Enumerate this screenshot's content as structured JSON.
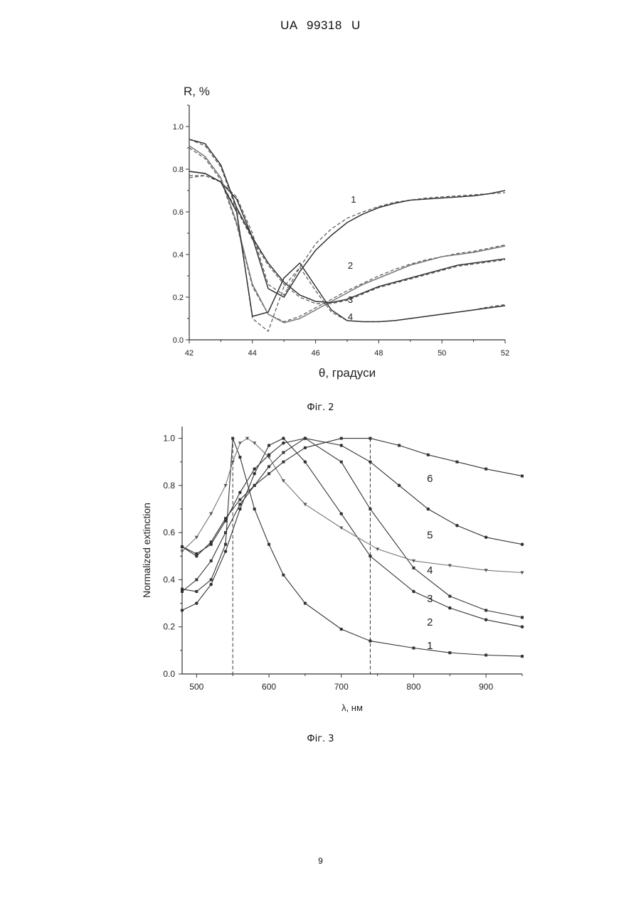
{
  "header": {
    "doc_id": "UA 99318 U"
  },
  "page_number": "9",
  "chart_data": [
    {
      "type": "line",
      "caption": "Фіг. 2",
      "xlabel": "θ, градуси",
      "ylabel": "R, %",
      "xlim": [
        42,
        52
      ],
      "ylim": [
        0,
        1.1
      ],
      "xticks": [
        42,
        44,
        46,
        48,
        50,
        52
      ],
      "yticks": [
        0.0,
        0.2,
        0.4,
        0.6,
        0.8,
        1.0
      ],
      "grid": false,
      "series": [
        {
          "name": "1",
          "label_at": [
            47.2,
            0.66
          ],
          "x": [
            42,
            42.5,
            43,
            43.5,
            44,
            44.5,
            45,
            45.5,
            46,
            46.5,
            47,
            47.5,
            48,
            48.5,
            49,
            49.5,
            50,
            50.5,
            51,
            51.5,
            52
          ],
          "measured": [
            0.79,
            0.78,
            0.74,
            0.66,
            0.48,
            0.24,
            0.2,
            0.32,
            0.42,
            0.49,
            0.55,
            0.59,
            0.62,
            0.64,
            0.655,
            0.66,
            0.665,
            0.67,
            0.675,
            0.685,
            0.7
          ],
          "fitted": [
            0.76,
            0.77,
            0.74,
            0.67,
            0.5,
            0.26,
            0.21,
            0.34,
            0.45,
            0.52,
            0.57,
            0.6,
            0.625,
            0.645,
            0.655,
            0.665,
            0.67,
            0.675,
            0.68,
            0.685,
            0.69
          ]
        },
        {
          "name": "2",
          "label_at": [
            47.1,
            0.35
          ],
          "x": [
            42,
            42.5,
            43,
            43.5,
            44,
            44.5,
            45,
            45.5,
            46,
            46.5,
            47,
            47.5,
            48,
            48.5,
            49,
            49.5,
            50,
            50.5,
            51,
            51.5,
            52
          ],
          "measured": [
            0.91,
            0.86,
            0.76,
            0.55,
            0.26,
            0.12,
            0.08,
            0.1,
            0.14,
            0.18,
            0.22,
            0.26,
            0.29,
            0.32,
            0.35,
            0.37,
            0.39,
            0.4,
            0.41,
            0.425,
            0.44
          ],
          "fitted": [
            0.9,
            0.85,
            0.75,
            0.54,
            0.25,
            0.12,
            0.085,
            0.11,
            0.15,
            0.19,
            0.23,
            0.265,
            0.3,
            0.33,
            0.355,
            0.375,
            0.39,
            0.405,
            0.415,
            0.43,
            0.445
          ]
        },
        {
          "name": "3",
          "label_at": [
            47.1,
            0.19
          ],
          "x": [
            42,
            42.5,
            43,
            43.5,
            44,
            44.5,
            45,
            45.5,
            46,
            46.5,
            47,
            47.5,
            48,
            48.5,
            49,
            49.5,
            50,
            50.5,
            51,
            51.5,
            52
          ],
          "measured": [
            0.94,
            0.92,
            0.82,
            0.62,
            0.48,
            0.36,
            0.27,
            0.21,
            0.18,
            0.175,
            0.19,
            0.22,
            0.25,
            0.27,
            0.29,
            0.31,
            0.33,
            0.35,
            0.36,
            0.37,
            0.38
          ],
          "fitted": [
            0.94,
            0.91,
            0.81,
            0.61,
            0.47,
            0.35,
            0.26,
            0.2,
            0.17,
            0.17,
            0.185,
            0.215,
            0.245,
            0.265,
            0.285,
            0.305,
            0.325,
            0.345,
            0.355,
            0.365,
            0.375
          ]
        },
        {
          "name": "4",
          "label_at": [
            47.1,
            0.11
          ],
          "x": [
            42,
            42.5,
            43,
            43.5,
            44,
            44.5,
            45,
            45.5,
            46,
            46.5,
            47,
            47.5,
            48,
            48.5,
            49,
            49.5,
            50,
            50.5,
            51,
            51.5,
            52
          ],
          "measured": [
            0.79,
            0.78,
            0.74,
            0.6,
            0.11,
            0.13,
            0.29,
            0.36,
            0.25,
            0.14,
            0.09,
            0.085,
            0.085,
            0.09,
            0.1,
            0.11,
            0.12,
            0.13,
            0.14,
            0.15,
            0.16
          ],
          "fitted": [
            0.77,
            0.77,
            0.74,
            0.61,
            0.1,
            0.04,
            0.25,
            0.34,
            0.23,
            0.13,
            0.09,
            0.085,
            0.085,
            0.09,
            0.1,
            0.11,
            0.12,
            0.13,
            0.14,
            0.155,
            0.165
          ]
        }
      ]
    },
    {
      "type": "line",
      "caption": "Фіг. 3",
      "xlabel": "λ, нм",
      "ylabel": "Normalized extinction",
      "xlim": [
        480,
        950
      ],
      "ylim": [
        0,
        1.05
      ],
      "xticks": [
        500,
        600,
        700,
        800,
        900
      ],
      "yticks": [
        0.0,
        0.2,
        0.4,
        0.6,
        0.8,
        1.0
      ],
      "grid": false,
      "reference_lines_x": [
        550,
        740
      ],
      "series": [
        {
          "name": "1",
          "label_at": [
            850,
            0.12
          ],
          "x": [
            480,
            500,
            520,
            540,
            550,
            560,
            580,
            600,
            620,
            650,
            700,
            740,
            800,
            850,
            900,
            950
          ],
          "values": [
            0.36,
            0.35,
            0.4,
            0.55,
            1.0,
            0.92,
            0.7,
            0.55,
            0.42,
            0.3,
            0.19,
            0.14,
            0.11,
            0.09,
            0.08,
            0.075
          ]
        },
        {
          "name": "2",
          "label_at": [
            850,
            0.22
          ],
          "x": [
            480,
            500,
            520,
            540,
            560,
            580,
            600,
            620,
            650,
            700,
            740,
            800,
            850,
            900,
            950
          ],
          "values": [
            0.27,
            0.3,
            0.38,
            0.52,
            0.7,
            0.85,
            0.97,
            1.0,
            0.9,
            0.68,
            0.5,
            0.35,
            0.28,
            0.23,
            0.2
          ]
        },
        {
          "name": "3",
          "label_at": [
            850,
            0.32
          ],
          "x": [
            480,
            500,
            520,
            540,
            560,
            580,
            600,
            620,
            650,
            700,
            740,
            800,
            850,
            900,
            950
          ],
          "values": [
            0.35,
            0.4,
            0.48,
            0.6,
            0.72,
            0.8,
            0.88,
            0.94,
            1.0,
            0.9,
            0.7,
            0.45,
            0.33,
            0.27,
            0.24
          ]
        },
        {
          "name": "4",
          "label_at": [
            850,
            0.44
          ],
          "x": [
            480,
            500,
            520,
            540,
            550,
            560,
            570,
            580,
            600,
            620,
            650,
            700,
            750,
            800,
            850,
            900,
            950
          ],
          "values": [
            0.52,
            0.58,
            0.68,
            0.8,
            0.9,
            0.98,
            1.0,
            0.98,
            0.92,
            0.82,
            0.72,
            0.62,
            0.53,
            0.48,
            0.46,
            0.44,
            0.43
          ]
        },
        {
          "name": "5",
          "label_at": [
            850,
            0.59
          ],
          "x": [
            480,
            500,
            520,
            540,
            560,
            580,
            600,
            620,
            650,
            700,
            740,
            780,
            820,
            860,
            900,
            950
          ],
          "values": [
            0.54,
            0.51,
            0.55,
            0.65,
            0.77,
            0.87,
            0.93,
            0.98,
            1.0,
            0.97,
            0.9,
            0.8,
            0.7,
            0.63,
            0.58,
            0.55
          ]
        },
        {
          "name": "6",
          "label_at": [
            850,
            0.83
          ],
          "x": [
            480,
            500,
            520,
            540,
            560,
            580,
            600,
            620,
            650,
            700,
            740,
            780,
            820,
            860,
            900,
            950
          ],
          "values": [
            0.54,
            0.5,
            0.56,
            0.66,
            0.74,
            0.8,
            0.85,
            0.9,
            0.96,
            1.0,
            1.0,
            0.97,
            0.93,
            0.9,
            0.87,
            0.84
          ]
        }
      ]
    }
  ]
}
